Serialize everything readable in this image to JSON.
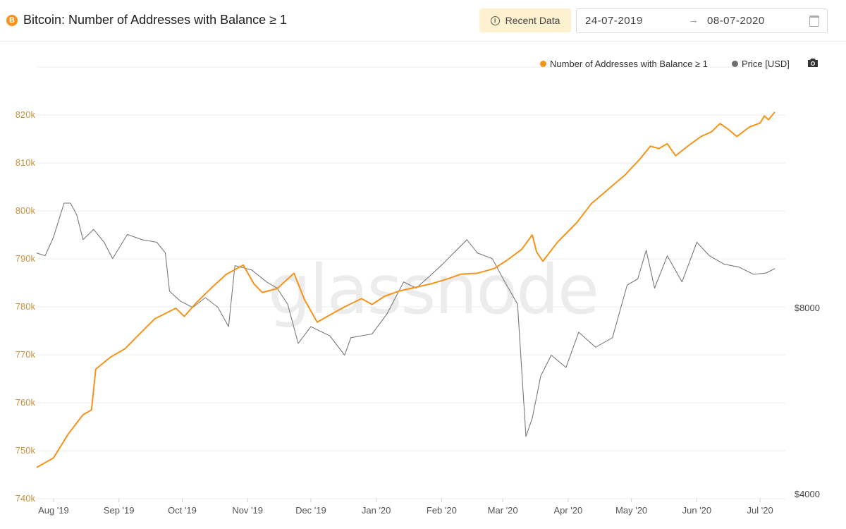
{
  "header": {
    "coin_symbol": "B",
    "title": "Bitcoin: Number of Addresses with Balance ≥ 1",
    "recent_button": "Recent Data",
    "date_start": "24-07-2019",
    "date_arrow": "→",
    "date_end": "08-07-2020"
  },
  "watermark": "glassnode",
  "colors": {
    "addresses": "#f7931a",
    "price": "#7a7a7a",
    "grid": "#ececec"
  },
  "chart_data": {
    "type": "line",
    "title": "Bitcoin: Number of Addresses with Balance ≥ 1",
    "x_range": [
      "2019-07-24",
      "2020-07-08"
    ],
    "x_ticks": [
      "Aug '19",
      "Sep '19",
      "Oct '19",
      "Nov '19",
      "Dec '19",
      "Jan '20",
      "Feb '20",
      "Mar '20",
      "Apr '20",
      "May '20",
      "Jun '20",
      "Jul '20"
    ],
    "y_left": {
      "ticks": [
        "740k",
        "750k",
        "760k",
        "770k",
        "780k",
        "790k",
        "800k",
        "810k",
        "820k"
      ],
      "range": [
        740000,
        822000
      ]
    },
    "y_right": {
      "ticks": [
        "$4000",
        "$8000"
      ],
      "scale": "log",
      "range": [
        4000,
        14000
      ]
    },
    "legend_position": "top-right",
    "grid": true,
    "series": [
      {
        "name": "Number of Addresses with Balance ≥ 1",
        "axis": "left",
        "points": [
          [
            "2019-07-24",
            746500
          ],
          [
            "2019-08-01",
            748500
          ],
          [
            "2019-08-08",
            753500
          ],
          [
            "2019-08-15",
            757500
          ],
          [
            "2019-08-19",
            758500
          ],
          [
            "2019-08-21",
            767000
          ],
          [
            "2019-08-28",
            769500
          ],
          [
            "2019-09-04",
            771300
          ],
          [
            "2019-09-10",
            774000
          ],
          [
            "2019-09-18",
            777500
          ],
          [
            "2019-09-28",
            779700
          ],
          [
            "2019-10-02",
            778000
          ],
          [
            "2019-10-08",
            781000
          ],
          [
            "2019-10-15",
            784000
          ],
          [
            "2019-10-22",
            786800
          ],
          [
            "2019-10-30",
            788700
          ],
          [
            "2019-11-04",
            784800
          ],
          [
            "2019-11-08",
            783000
          ],
          [
            "2019-11-15",
            783800
          ],
          [
            "2019-11-23",
            787000
          ],
          [
            "2019-11-28",
            781500
          ],
          [
            "2019-12-04",
            776800
          ],
          [
            "2019-12-10",
            778300
          ],
          [
            "2019-12-17",
            780000
          ],
          [
            "2019-12-25",
            781700
          ],
          [
            "2019-12-30",
            780500
          ],
          [
            "2020-01-05",
            782200
          ],
          [
            "2020-01-12",
            783300
          ],
          [
            "2020-01-20",
            784100
          ],
          [
            "2020-01-27",
            784800
          ],
          [
            "2020-02-03",
            785700
          ],
          [
            "2020-02-10",
            786800
          ],
          [
            "2020-02-18",
            787000
          ],
          [
            "2020-02-26",
            788000
          ],
          [
            "2020-03-03",
            789700
          ],
          [
            "2020-03-10",
            792000
          ],
          [
            "2020-03-15",
            795000
          ],
          [
            "2020-03-17",
            791500
          ],
          [
            "2020-03-20",
            789500
          ],
          [
            "2020-03-27",
            793500
          ],
          [
            "2020-04-05",
            797500
          ],
          [
            "2020-04-12",
            801500
          ],
          [
            "2020-04-20",
            804500
          ],
          [
            "2020-04-28",
            807500
          ],
          [
            "2020-05-05",
            810800
          ],
          [
            "2020-05-10",
            813500
          ],
          [
            "2020-05-14",
            813000
          ],
          [
            "2020-05-18",
            814000
          ],
          [
            "2020-05-22",
            811500
          ],
          [
            "2020-05-28",
            813600
          ],
          [
            "2020-06-03",
            815500
          ],
          [
            "2020-06-08",
            816500
          ],
          [
            "2020-06-12",
            818200
          ],
          [
            "2020-06-16",
            817000
          ],
          [
            "2020-06-20",
            815500
          ],
          [
            "2020-06-26",
            817500
          ],
          [
            "2020-07-01",
            818300
          ],
          [
            "2020-07-03",
            819800
          ],
          [
            "2020-07-05",
            819000
          ],
          [
            "2020-07-08",
            820600
          ]
        ]
      },
      {
        "name": "Price [USD]",
        "axis": "right",
        "points": [
          [
            "2019-07-24",
            9800
          ],
          [
            "2019-07-28",
            9700
          ],
          [
            "2019-08-01",
            10400
          ],
          [
            "2019-08-06",
            11800
          ],
          [
            "2019-08-09",
            11800
          ],
          [
            "2019-08-12",
            11300
          ],
          [
            "2019-08-15",
            10300
          ],
          [
            "2019-08-20",
            10700
          ],
          [
            "2019-08-25",
            10200
          ],
          [
            "2019-08-29",
            9600
          ],
          [
            "2019-09-05",
            10500
          ],
          [
            "2019-09-12",
            10300
          ],
          [
            "2019-09-19",
            10200
          ],
          [
            "2019-09-23",
            9800
          ],
          [
            "2019-09-25",
            8500
          ],
          [
            "2019-09-30",
            8200
          ],
          [
            "2019-10-06",
            8000
          ],
          [
            "2019-10-12",
            8300
          ],
          [
            "2019-10-18",
            8000
          ],
          [
            "2019-10-23",
            7450
          ],
          [
            "2019-10-26",
            9350
          ],
          [
            "2019-11-03",
            9200
          ],
          [
            "2019-11-10",
            8800
          ],
          [
            "2019-11-15",
            8600
          ],
          [
            "2019-11-20",
            8100
          ],
          [
            "2019-11-25",
            7000
          ],
          [
            "2019-12-01",
            7450
          ],
          [
            "2019-12-10",
            7200
          ],
          [
            "2019-12-17",
            6700
          ],
          [
            "2019-12-20",
            7150
          ],
          [
            "2019-12-30",
            7250
          ],
          [
            "2020-01-06",
            7800
          ],
          [
            "2020-01-14",
            8800
          ],
          [
            "2020-01-20",
            8600
          ],
          [
            "2020-01-31",
            9300
          ],
          [
            "2020-02-08",
            9900
          ],
          [
            "2020-02-13",
            10300
          ],
          [
            "2020-02-18",
            9800
          ],
          [
            "2020-02-25",
            9600
          ],
          [
            "2020-03-02",
            8800
          ],
          [
            "2020-03-08",
            8100
          ],
          [
            "2020-03-12",
            4950
          ],
          [
            "2020-03-15",
            5300
          ],
          [
            "2020-03-19",
            6200
          ],
          [
            "2020-03-24",
            6700
          ],
          [
            "2020-03-31",
            6400
          ],
          [
            "2020-04-06",
            7300
          ],
          [
            "2020-04-14",
            6900
          ],
          [
            "2020-04-22",
            7150
          ],
          [
            "2020-04-29",
            8700
          ],
          [
            "2020-05-04",
            8900
          ],
          [
            "2020-05-08",
            9900
          ],
          [
            "2020-05-12",
            8600
          ],
          [
            "2020-05-18",
            9700
          ],
          [
            "2020-05-25",
            8800
          ],
          [
            "2020-06-01",
            10200
          ],
          [
            "2020-06-07",
            9700
          ],
          [
            "2020-06-14",
            9400
          ],
          [
            "2020-06-21",
            9300
          ],
          [
            "2020-06-28",
            9050
          ],
          [
            "2020-07-04",
            9100
          ],
          [
            "2020-07-08",
            9250
          ]
        ]
      }
    ]
  }
}
